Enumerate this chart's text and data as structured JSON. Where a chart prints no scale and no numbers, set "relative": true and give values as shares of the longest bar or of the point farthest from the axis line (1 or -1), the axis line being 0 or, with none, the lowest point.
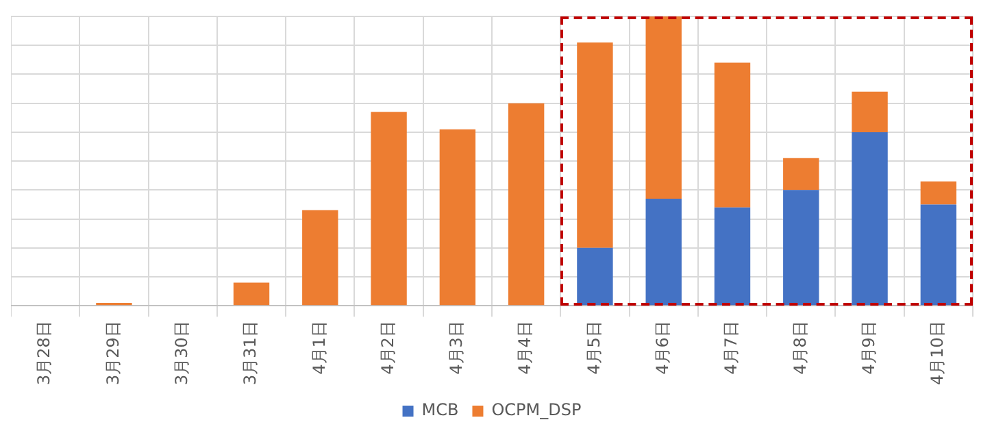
{
  "chart_data": {
    "type": "bar",
    "stacked": true,
    "relative": true,
    "grid": true,
    "legend": "bottom",
    "categories": [
      "3月28日",
      "3月29日",
      "3月30日",
      "3月31日",
      "4月1日",
      "4月2日",
      "4月3日",
      "4月4日",
      "4月5日",
      "4月6日",
      "4月7日",
      "4月8日",
      "4月9日",
      "4月10日"
    ],
    "series": [
      {
        "name": "MCB",
        "color": "#4472c4",
        "values": [
          0,
          0,
          0,
          0,
          0,
          0,
          0,
          0,
          0.2,
          0.37,
          0.34,
          0.4,
          0.6,
          0.35
        ]
      },
      {
        "name": "OCPM_DSP",
        "color": "#ed7d31",
        "values": [
          0,
          0.01,
          0,
          0.08,
          0.33,
          0.67,
          0.61,
          0.7,
          0.71,
          0.63,
          0.5,
          0.11,
          0.14,
          0.08
        ]
      }
    ]
  }
}
